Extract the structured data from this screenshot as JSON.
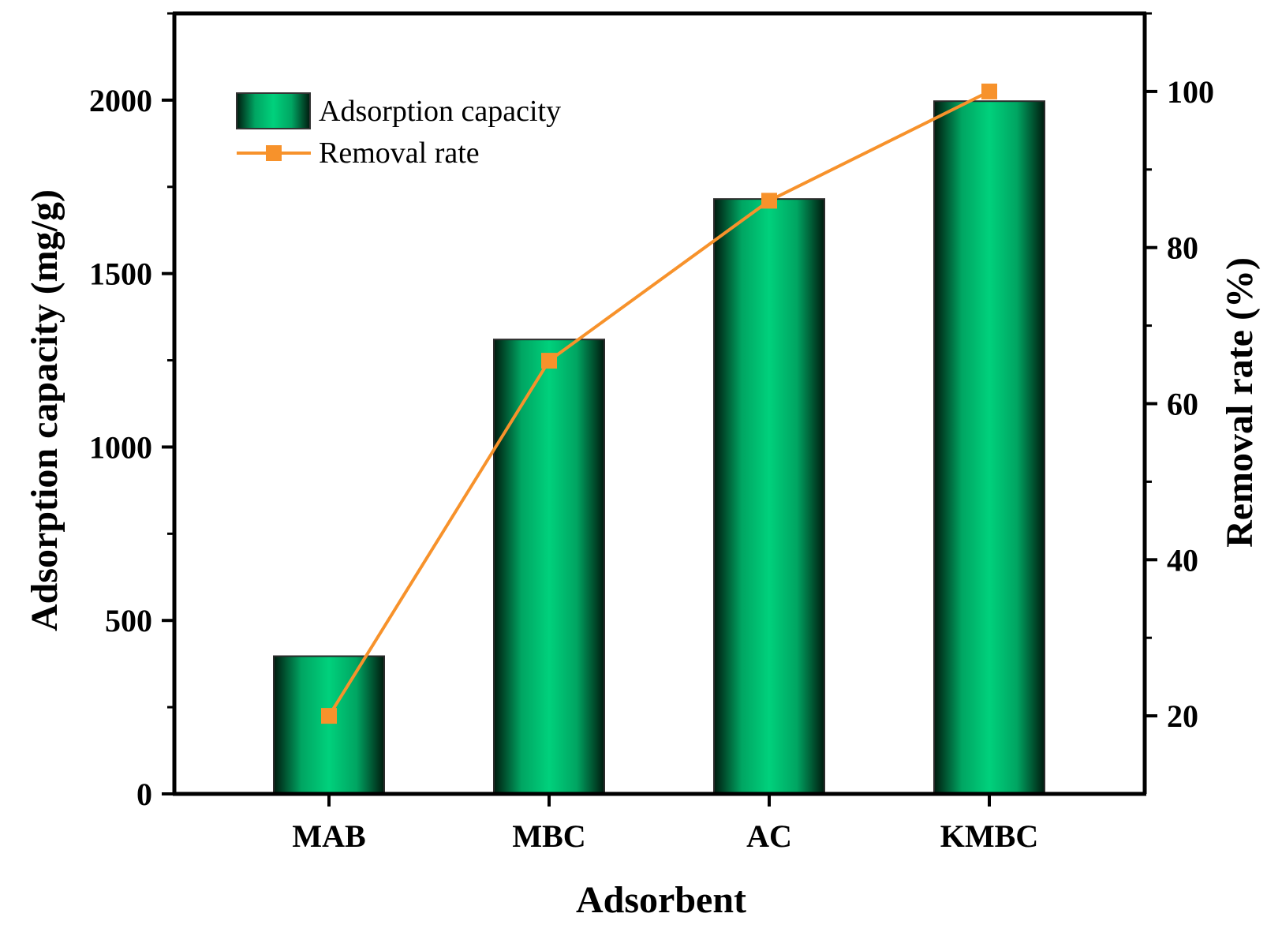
{
  "chart_data": {
    "type": "bar",
    "xlabel": "Adsorbent",
    "categories": [
      "MAB",
      "MBC",
      "AC",
      "KMBC"
    ],
    "series": [
      {
        "name": "Adsorption capacity",
        "type": "bar",
        "axis": "left",
        "values": [
          397,
          1310,
          1715,
          1997
        ],
        "color": "#00D17C"
      },
      {
        "name": "Removal rate",
        "type": "line",
        "marker": "square",
        "axis": "right",
        "values": [
          20,
          65.5,
          86,
          100
        ],
        "color": "#F7922B"
      }
    ],
    "y_left": {
      "label": "Adsorption capacity (mg/g)",
      "lim": [
        0,
        2250
      ],
      "ticks": [
        0,
        500,
        1000,
        1500,
        2000
      ],
      "tick_labels": [
        "0",
        "500",
        "1000",
        "1500",
        "2000"
      ],
      "minor_ticks": [
        250,
        750,
        1250,
        1750,
        2250
      ]
    },
    "y_right": {
      "label": "Removal rate (%)",
      "lim": [
        10,
        110
      ],
      "ticks": [
        20,
        40,
        60,
        80,
        100
      ],
      "tick_labels": [
        "20",
        "40",
        "60",
        "80",
        "100"
      ],
      "minor_ticks": [
        30,
        50,
        70,
        90,
        110
      ]
    },
    "legend": {
      "position": "top-left",
      "entries": [
        "Adsorption capacity",
        "Removal rate"
      ]
    },
    "grid": false
  }
}
